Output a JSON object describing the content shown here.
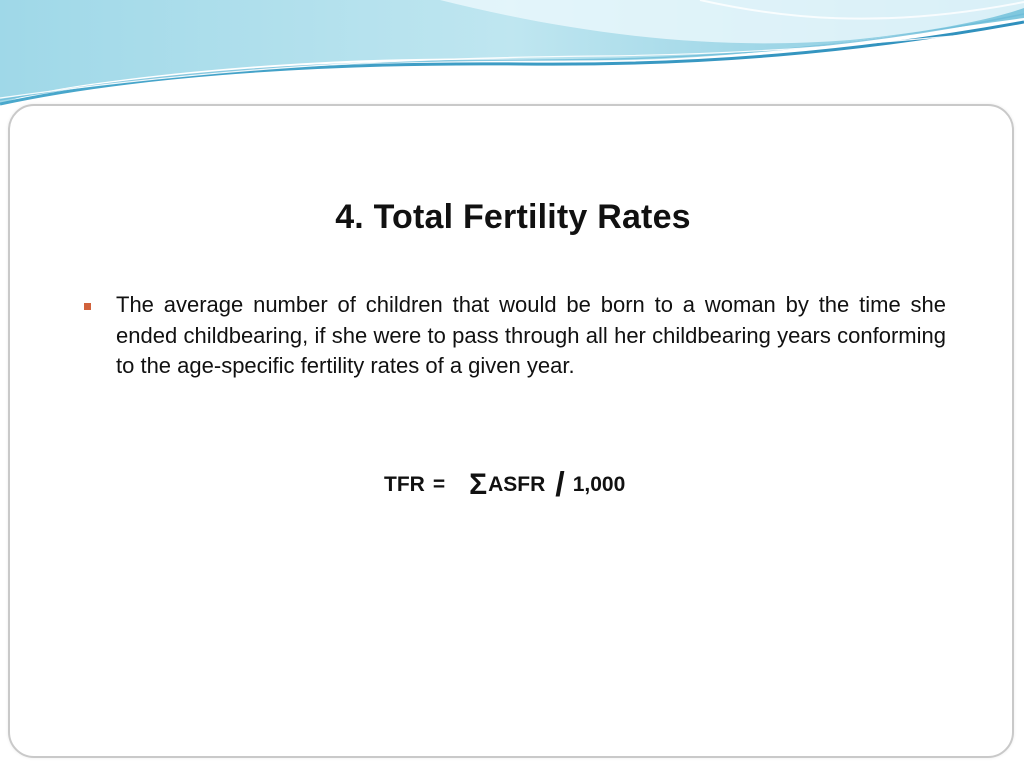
{
  "theme": {
    "banner_light": "#cfeef4",
    "banner_mid": "#79c5dc",
    "banner_dark": "#3a9ec4",
    "bullet_color": "#d1623c",
    "panel_border": "#c9c9c9"
  },
  "slide": {
    "title": "4.  Total Fertility Rates",
    "bullet": {
      "icon": "square-bullet-icon",
      "text": "The average number of children that would be born to a woman by the time she ended childbearing, if she were to pass through all her childbearing years conforming to the age-specific fertility rates of a given year."
    },
    "formula": {
      "lhs": "TFR",
      "equals": "=",
      "sigma": "Σ",
      "term": "ASFR",
      "slash": "/",
      "denominator": "1,000"
    }
  }
}
